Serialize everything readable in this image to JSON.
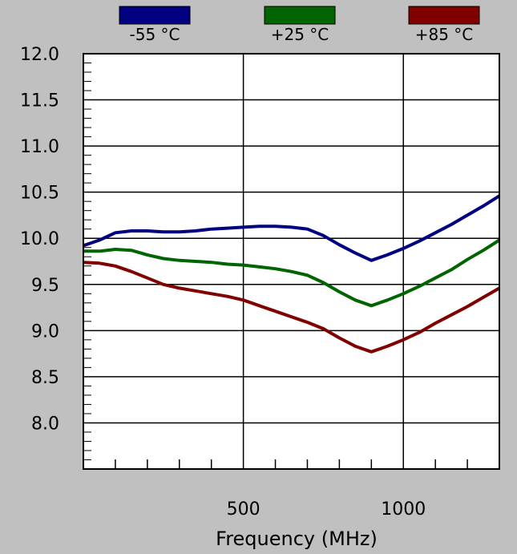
{
  "chart_data": {
    "type": "line",
    "title": "",
    "xlabel": "Frequency (MHz)",
    "ylabel": "",
    "xlim": [
      0,
      1300
    ],
    "ylim": [
      7.5,
      12.0
    ],
    "x_ticks": [
      500,
      1000
    ],
    "x_tick_labels": [
      "500",
      "1000"
    ],
    "y_ticks": [
      8.0,
      8.5,
      9.0,
      9.5,
      10.0,
      10.5,
      11.0,
      11.5,
      12.0
    ],
    "y_tick_labels": [
      "8.0",
      "8.5",
      "9.0",
      "9.5",
      "10.0",
      "10.5",
      "11.0",
      "11.5",
      "12.0"
    ],
    "x_minor_step": 100,
    "y_minor_step": 0.1,
    "grid": true,
    "legend_position": "top",
    "series": [
      {
        "name": "-55 °C",
        "color": "#000080",
        "points": [
          [
            0,
            9.92
          ],
          [
            50,
            9.98
          ],
          [
            100,
            10.06
          ],
          [
            150,
            10.08
          ],
          [
            200,
            10.08
          ],
          [
            250,
            10.07
          ],
          [
            300,
            10.07
          ],
          [
            350,
            10.08
          ],
          [
            400,
            10.1
          ],
          [
            450,
            10.11
          ],
          [
            500,
            10.12
          ],
          [
            550,
            10.13
          ],
          [
            600,
            10.13
          ],
          [
            650,
            10.12
          ],
          [
            700,
            10.1
          ],
          [
            750,
            10.03
          ],
          [
            800,
            9.93
          ],
          [
            850,
            9.84
          ],
          [
            900,
            9.76
          ],
          [
            950,
            9.82
          ],
          [
            1000,
            9.89
          ],
          [
            1050,
            9.97
          ],
          [
            1100,
            10.06
          ],
          [
            1150,
            10.15
          ],
          [
            1200,
            10.25
          ],
          [
            1250,
            10.35
          ],
          [
            1300,
            10.46
          ]
        ]
      },
      {
        "name": "+25 °C",
        "color": "#006400",
        "points": [
          [
            0,
            9.86
          ],
          [
            50,
            9.86
          ],
          [
            100,
            9.88
          ],
          [
            150,
            9.87
          ],
          [
            200,
            9.82
          ],
          [
            250,
            9.78
          ],
          [
            300,
            9.76
          ],
          [
            350,
            9.75
          ],
          [
            400,
            9.74
          ],
          [
            450,
            9.72
          ],
          [
            500,
            9.71
          ],
          [
            550,
            9.69
          ],
          [
            600,
            9.67
          ],
          [
            650,
            9.64
          ],
          [
            700,
            9.6
          ],
          [
            750,
            9.52
          ],
          [
            800,
            9.42
          ],
          [
            850,
            9.33
          ],
          [
            900,
            9.27
          ],
          [
            950,
            9.33
          ],
          [
            1000,
            9.4
          ],
          [
            1050,
            9.48
          ],
          [
            1100,
            9.57
          ],
          [
            1150,
            9.66
          ],
          [
            1200,
            9.77
          ],
          [
            1250,
            9.87
          ],
          [
            1300,
            9.98
          ]
        ]
      },
      {
        "name": "+85 °C",
        "color": "#800000",
        "points": [
          [
            0,
            9.74
          ],
          [
            50,
            9.73
          ],
          [
            100,
            9.7
          ],
          [
            150,
            9.64
          ],
          [
            200,
            9.57
          ],
          [
            250,
            9.5
          ],
          [
            300,
            9.46
          ],
          [
            350,
            9.43
          ],
          [
            400,
            9.4
          ],
          [
            450,
            9.37
          ],
          [
            500,
            9.33
          ],
          [
            550,
            9.27
          ],
          [
            600,
            9.21
          ],
          [
            650,
            9.15
          ],
          [
            700,
            9.09
          ],
          [
            750,
            9.02
          ],
          [
            800,
            8.92
          ],
          [
            850,
            8.83
          ],
          [
            900,
            8.77
          ],
          [
            950,
            8.83
          ],
          [
            1000,
            8.9
          ],
          [
            1050,
            8.98
          ],
          [
            1100,
            9.08
          ],
          [
            1150,
            9.17
          ],
          [
            1200,
            9.26
          ],
          [
            1250,
            9.36
          ],
          [
            1300,
            9.46
          ]
        ]
      }
    ]
  }
}
